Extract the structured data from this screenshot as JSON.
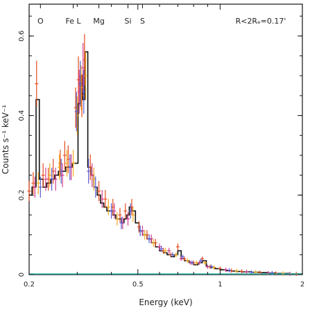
{
  "chart_data": {
    "type": "scatter",
    "title": "",
    "xlabel": "Energy (keV)",
    "ylabel": "Counts s⁻¹ keV⁻¹",
    "xscale": "log",
    "xlim": [
      0.2,
      2.0
    ],
    "ylim": [
      0,
      0.68
    ],
    "x_ticks": [
      {
        "value": 0.2,
        "label": "0.2"
      },
      {
        "value": 0.5,
        "label": "0.5"
      },
      {
        "value": 1.0,
        "label": "1"
      },
      {
        "value": 2.0,
        "label": "2"
      }
    ],
    "y_ticks": [
      {
        "value": 0,
        "label": "0"
      },
      {
        "value": 0.2,
        "label": "0.2"
      },
      {
        "value": 0.4,
        "label": "0.4"
      },
      {
        "value": 0.6,
        "label": "0.6"
      }
    ],
    "line_annotations": [
      {
        "label": "O",
        "energy": 0.22
      },
      {
        "label": "Fe L",
        "energy": 0.29
      },
      {
        "label": "Mg",
        "energy": 0.36
      },
      {
        "label": "Si",
        "energy": 0.46
      },
      {
        "label": "S",
        "energy": 0.52
      }
    ],
    "region_label": "R<2Rₑ=0.17'",
    "colors": {
      "model": "#111111",
      "series_a": "#e64b1e",
      "series_b": "#d23c8c",
      "series_c": "#f2a81d",
      "series_d": "#5a5ad2",
      "zero_line": "#2bb3a8"
    },
    "model": {
      "x": [
        0.2,
        0.205,
        0.212,
        0.218,
        0.225,
        0.232,
        0.24,
        0.248,
        0.256,
        0.264,
        0.272,
        0.28,
        0.288,
        0.296,
        0.302,
        0.308,
        0.314,
        0.32,
        0.328,
        0.336,
        0.345,
        0.355,
        0.365,
        0.375,
        0.385,
        0.395,
        0.405,
        0.415,
        0.425,
        0.435,
        0.445,
        0.455,
        0.465,
        0.475,
        0.49,
        0.505,
        0.52,
        0.54,
        0.56,
        0.58,
        0.6,
        0.62,
        0.64,
        0.66,
        0.68,
        0.7,
        0.72,
        0.74,
        0.77,
        0.8,
        0.83,
        0.86,
        0.89,
        0.92,
        0.96,
        1.0,
        1.05,
        1.1,
        1.15,
        1.2,
        1.3,
        1.4,
        1.5,
        1.6,
        1.8,
        2.0
      ],
      "y": [
        0.2,
        0.22,
        0.44,
        0.24,
        0.22,
        0.23,
        0.24,
        0.25,
        0.26,
        0.26,
        0.27,
        0.27,
        0.28,
        0.28,
        0.43,
        0.5,
        0.44,
        0.56,
        0.27,
        0.25,
        0.22,
        0.2,
        0.18,
        0.17,
        0.16,
        0.16,
        0.15,
        0.14,
        0.14,
        0.13,
        0.14,
        0.15,
        0.17,
        0.16,
        0.13,
        0.11,
        0.1,
        0.09,
        0.08,
        0.07,
        0.06,
        0.055,
        0.05,
        0.045,
        0.05,
        0.06,
        0.04,
        0.035,
        0.03,
        0.025,
        0.03,
        0.035,
        0.02,
        0.018,
        0.015,
        0.012,
        0.01,
        0.009,
        0.008,
        0.007,
        0.006,
        0.005,
        0.004,
        0.003,
        0.002,
        0.001
      ]
    },
    "series": [
      {
        "x": [
          0.2,
          0.207,
          0.213,
          0.225,
          0.235,
          0.245,
          0.26,
          0.27,
          0.278,
          0.296,
          0.303,
          0.312,
          0.319,
          0.335,
          0.36,
          0.38,
          0.405,
          0.43,
          0.45,
          0.475,
          0.505,
          0.54,
          0.58,
          0.62,
          0.66,
          0.7,
          0.74,
          0.8,
          0.86,
          0.92,
          1.0,
          1.1,
          1.2,
          1.4,
          1.6,
          1.9
        ],
        "y": [
          0.21,
          0.23,
          0.48,
          0.25,
          0.24,
          0.26,
          0.28,
          0.3,
          0.29,
          0.42,
          0.49,
          0.45,
          0.54,
          0.27,
          0.21,
          0.19,
          0.17,
          0.15,
          0.16,
          0.17,
          0.12,
          0.1,
          0.08,
          0.06,
          0.05,
          0.07,
          0.04,
          0.03,
          0.04,
          0.02,
          0.015,
          0.01,
          0.008,
          0.005,
          0.003,
          0.002
        ]
      },
      {
        "x": [
          0.21,
          0.23,
          0.25,
          0.265,
          0.285,
          0.305,
          0.315,
          0.34,
          0.37,
          0.41,
          0.44,
          0.46,
          0.52,
          0.56,
          0.6,
          0.65,
          0.72,
          0.78,
          0.84,
          0.9,
          1.05,
          1.25,
          1.5,
          1.8
        ],
        "y": [
          0.22,
          0.24,
          0.24,
          0.25,
          0.27,
          0.46,
          0.52,
          0.25,
          0.19,
          0.16,
          0.13,
          0.14,
          0.11,
          0.09,
          0.07,
          0.06,
          0.04,
          0.03,
          0.03,
          0.02,
          0.012,
          0.007,
          0.004,
          0.002
        ]
      },
      {
        "x": [
          0.216,
          0.238,
          0.258,
          0.275,
          0.29,
          0.3,
          0.31,
          0.322,
          0.345,
          0.39,
          0.42,
          0.48,
          0.53,
          0.57,
          0.63,
          0.69,
          0.76,
          0.82,
          0.88,
          0.95,
          1.15,
          1.35,
          1.7
        ],
        "y": [
          0.23,
          0.25,
          0.27,
          0.28,
          0.28,
          0.4,
          0.47,
          0.5,
          0.24,
          0.17,
          0.14,
          0.15,
          0.1,
          0.08,
          0.06,
          0.05,
          0.035,
          0.03,
          0.03,
          0.018,
          0.009,
          0.006,
          0.003
        ]
      },
      {
        "x": [
          0.22,
          0.242,
          0.262,
          0.282,
          0.298,
          0.308,
          0.317,
          0.33,
          0.35,
          0.4,
          0.435,
          0.47,
          0.51,
          0.55,
          0.61,
          0.67,
          0.73,
          0.79,
          0.85,
          0.93,
          1.08,
          1.3,
          1.55
        ],
        "y": [
          0.22,
          0.24,
          0.26,
          0.27,
          0.41,
          0.48,
          0.46,
          0.26,
          0.22,
          0.16,
          0.13,
          0.16,
          0.11,
          0.09,
          0.065,
          0.05,
          0.045,
          0.03,
          0.035,
          0.02,
          0.011,
          0.006,
          0.004
        ]
      }
    ]
  }
}
